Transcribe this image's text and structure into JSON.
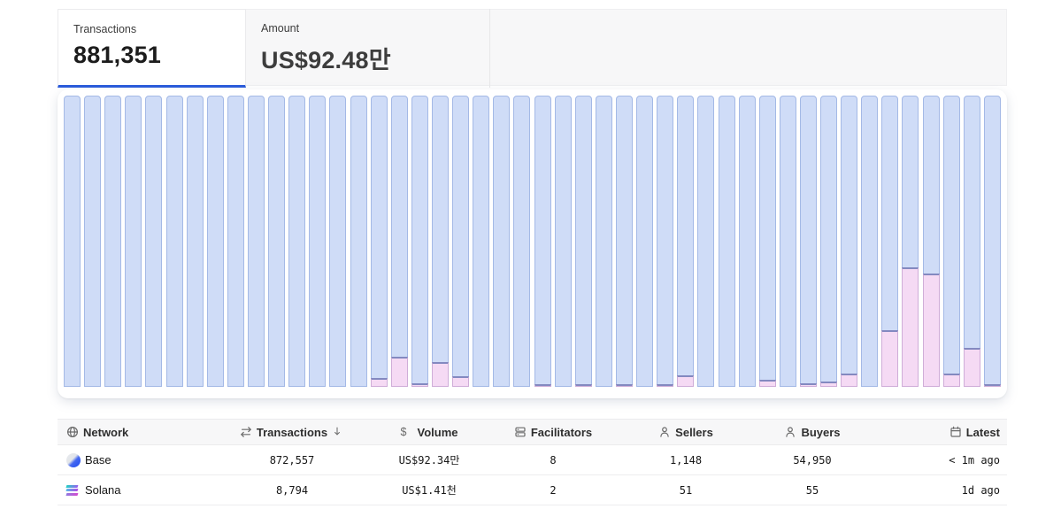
{
  "tabs": {
    "transactions": {
      "label": "Transactions",
      "value": "881,351",
      "active": true
    },
    "amount": {
      "label": "Amount",
      "value": "US$92.48만",
      "active": false
    }
  },
  "colors": {
    "accent_blue": "#2a5bdb",
    "bar_base_fill": "#cfdcf7",
    "bar_base_border": "#a4b9e6",
    "bar_solana_fill": "#f5daf4",
    "bar_solana_border": "#8389c0"
  },
  "chart_data": {
    "type": "bar",
    "subtype": "stacked-normalized",
    "bar_count": 46,
    "legend": "none",
    "axes": "none (no tick labels visible)",
    "series": [
      {
        "name": "Base",
        "color": "#cfdcf7",
        "values": [
          1,
          1,
          1,
          1,
          1,
          1,
          1,
          1,
          1,
          1,
          1,
          1,
          1,
          1,
          1,
          0.97,
          0.897,
          0.988,
          0.915,
          0.964,
          1,
          1,
          1,
          0.99,
          1,
          0.992,
          1,
          0.992,
          1,
          0.992,
          0.96,
          1,
          1,
          1,
          0.976,
          1,
          0.988,
          0.982,
          0.955,
          1,
          0.805,
          0.59,
          0.61,
          0.955,
          0.865,
          0.991
        ]
      },
      {
        "name": "Solana",
        "color": "#f5daf4",
        "values": [
          0,
          0,
          0,
          0,
          0,
          0,
          0,
          0,
          0,
          0,
          0,
          0,
          0,
          0,
          0,
          0.03,
          0.103,
          0.012,
          0.085,
          0.036,
          0,
          0,
          0,
          0.01,
          0,
          0.008,
          0,
          0.008,
          0,
          0.008,
          0.04,
          0,
          0,
          0,
          0.024,
          0,
          0.012,
          0.018,
          0.045,
          0,
          0.195,
          0.41,
          0.39,
          0.045,
          0.135,
          0.009
        ]
      }
    ]
  },
  "table": {
    "columns": [
      {
        "key": "network",
        "label": "Network",
        "icon": "globe-icon",
        "align": "left"
      },
      {
        "key": "transactions",
        "label": "Transactions",
        "icon": "swap-arrows-icon",
        "align": "center",
        "sort": "desc"
      },
      {
        "key": "volume",
        "label": "Volume",
        "icon": "dollar-icon",
        "align": "center"
      },
      {
        "key": "facilitators",
        "label": "Facilitators",
        "icon": "stack-icon",
        "align": "center"
      },
      {
        "key": "sellers",
        "label": "Sellers",
        "icon": "person-icon",
        "align": "center"
      },
      {
        "key": "buyers",
        "label": "Buyers",
        "icon": "person-icon",
        "align": "center"
      },
      {
        "key": "latest",
        "label": "Latest",
        "icon": "calendar-icon",
        "align": "right"
      }
    ],
    "rows": [
      {
        "network": "Base",
        "coin": "base",
        "transactions": "872,557",
        "volume": "US$92.34만",
        "facilitators": "8",
        "sellers": "1,148",
        "buyers": "54,950",
        "latest": "< 1m ago"
      },
      {
        "network": "Solana",
        "coin": "solana",
        "transactions": "8,794",
        "volume": "US$1.41천",
        "facilitators": "2",
        "sellers": "51",
        "buyers": "55",
        "latest": "1d ago"
      }
    ]
  }
}
